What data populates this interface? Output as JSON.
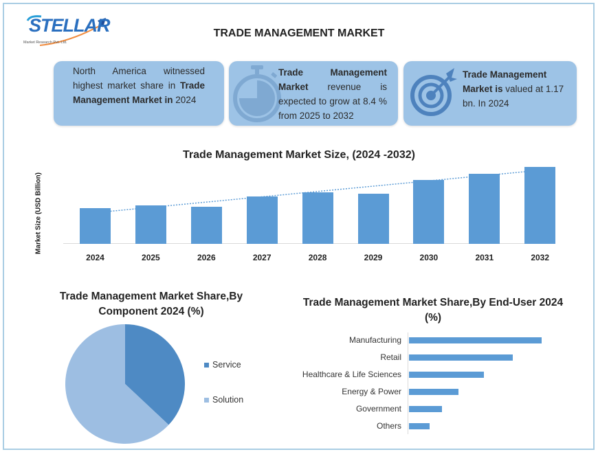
{
  "brand": {
    "logo_text": "STELLAR",
    "logo_subtext": "Market Research Pvt. Ltd."
  },
  "title": "TRADE MANAGEMENT MARKET",
  "cards": [
    {
      "icon": "globe-text-card",
      "parts": [
        {
          "text": "North America witnessed highest market share in ",
          "bold": false
        },
        {
          "text": "Trade Management Market in",
          "bold": true
        },
        {
          "text": " 2024",
          "bold": false
        }
      ]
    },
    {
      "icon": "stopwatch-icon",
      "parts": [
        {
          "text": "Trade Management Market",
          "bold": true
        },
        {
          "text": " revenue is expected to grow at 8.4 % from 2025 to 2032",
          "bold": false
        }
      ]
    },
    {
      "icon": "target-icon",
      "parts": [
        {
          "text": "Trade Management Market is",
          "bold": true
        },
        {
          "text": " valued at 1.17 bn. In 2024",
          "bold": false
        }
      ]
    }
  ],
  "colors": {
    "card_bg": "#9dc3e6",
    "bar": "#5b9bd5",
    "pie_service": "#4e8ac4",
    "pie_solution": "#9dbee2",
    "frame": "#a9cde3"
  },
  "chart_data": [
    {
      "type": "bar",
      "title": "Trade Management Market Size, (2024 -2032)",
      "xlabel": "",
      "ylabel": "Market Size (USD Billion)",
      "categories": [
        "2024",
        "2025",
        "2026",
        "2027",
        "2028",
        "2029",
        "2030",
        "2031",
        "2032"
      ],
      "values": [
        1.17,
        1.27,
        1.22,
        1.55,
        1.7,
        1.65,
        2.11,
        2.31,
        2.54
      ],
      "trendline": "dotted linear",
      "grid": false,
      "ylim": [
        0,
        2.6
      ]
    },
    {
      "type": "pie",
      "title": "Trade Management Market Share,By Component 2024 (%)",
      "categories": [
        "Service",
        "Solution"
      ],
      "values": [
        37,
        63
      ],
      "legend_position": "right"
    },
    {
      "type": "bar",
      "orientation": "horizontal",
      "title": "Trade Management Market Share,By End-User 2024  (%)",
      "categories": [
        "Manufacturing",
        "Retail",
        "Healthcare & Life Sciences",
        "Energy & Power",
        "Government",
        "Others"
      ],
      "values": [
        32,
        25,
        18,
        12,
        8,
        5
      ],
      "grid": false
    }
  ]
}
